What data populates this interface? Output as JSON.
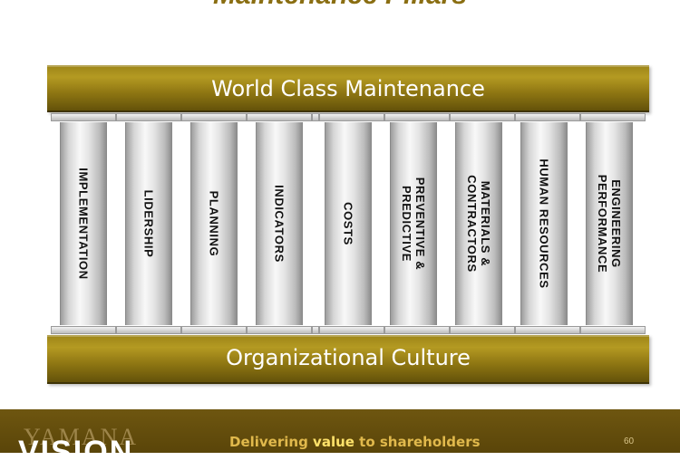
{
  "slide": {
    "title": "Maintenance Pillars",
    "top_beam": "World Class Maintenance",
    "bottom_beam": "Organizational Culture",
    "pillars": [
      {
        "label": "IMPLEMENTATION"
      },
      {
        "label": "LIDERSHIP"
      },
      {
        "label": "PLANNING"
      },
      {
        "label": "INDICATORS"
      },
      {
        "label": "COSTS"
      },
      {
        "label": "PREVENTIVE &\nPREDICTIVE"
      },
      {
        "label": "MATERIALS &\nCONTRACTORS"
      },
      {
        "label": "HUMAN RESOURCES"
      },
      {
        "label": "ENGINEERING\nPERFORMANCE"
      }
    ]
  },
  "footer": {
    "logo_top": "YAMANA",
    "logo_bottom": "VISION",
    "tagline_pre": "Delivering ",
    "tagline_highlight": "value",
    "tagline_post": " to shareholders",
    "page_number": "60"
  },
  "colors": {
    "beam_gold": "#9c8418",
    "footer_brown": "#5a4509",
    "tagline": "#e1b94c"
  }
}
